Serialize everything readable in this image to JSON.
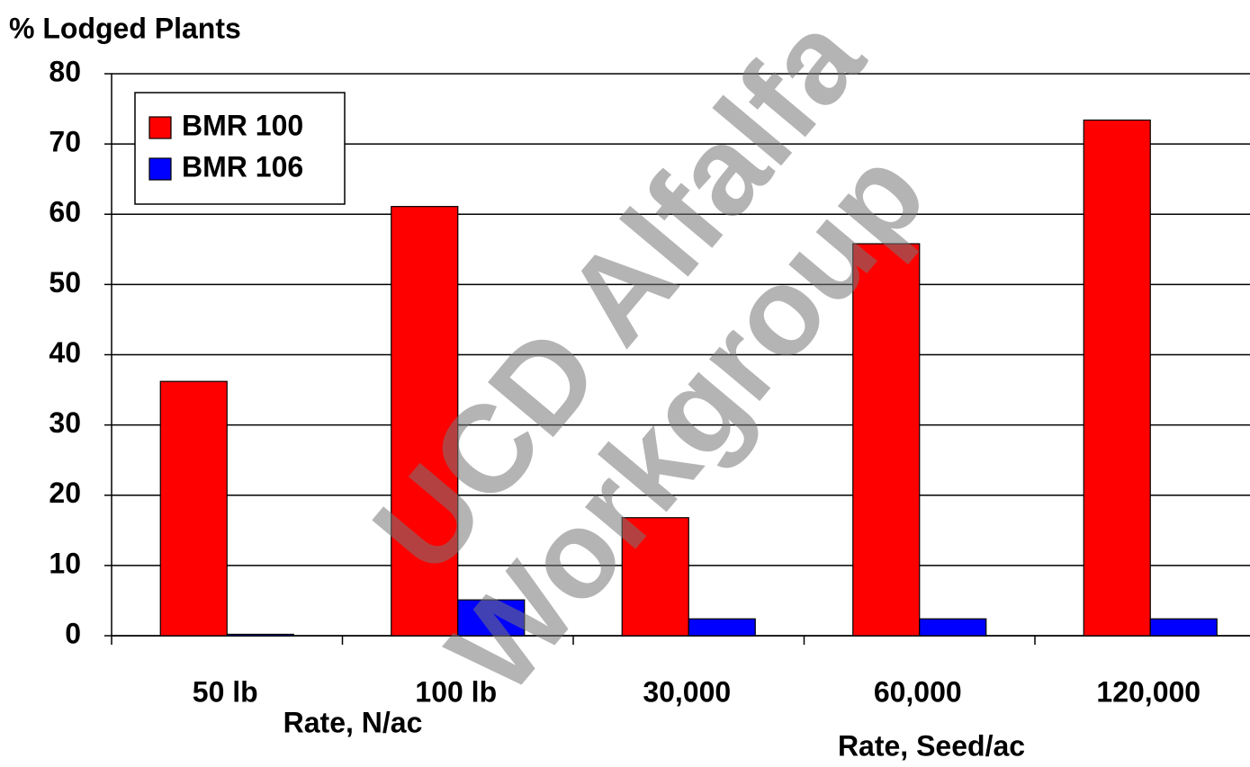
{
  "chart_data": {
    "type": "bar",
    "y_label": "% Lodged Plants",
    "group_labels": [
      "Rate, N/ac",
      "Rate, Seed/ac"
    ],
    "watermark": [
      "UCD Alfalfa",
      "Workgroup"
    ],
    "categories": [
      "50 lb",
      "100 lb",
      "30,000",
      "60,000",
      "120,000"
    ],
    "series": [
      {
        "name": "BMR 100",
        "color": "#ff0000",
        "values": [
          36.2,
          61.1,
          16.8,
          55.8,
          73.4
        ]
      },
      {
        "name": "BMR 106",
        "color": "#0000ff",
        "values": [
          0.2,
          5.1,
          2.4,
          2.4,
          2.4
        ]
      }
    ],
    "ylim": [
      0,
      80
    ],
    "yticks": [
      0,
      10,
      20,
      30,
      40,
      50,
      60,
      70,
      80
    ],
    "grid": true,
    "legend": "top-left"
  }
}
